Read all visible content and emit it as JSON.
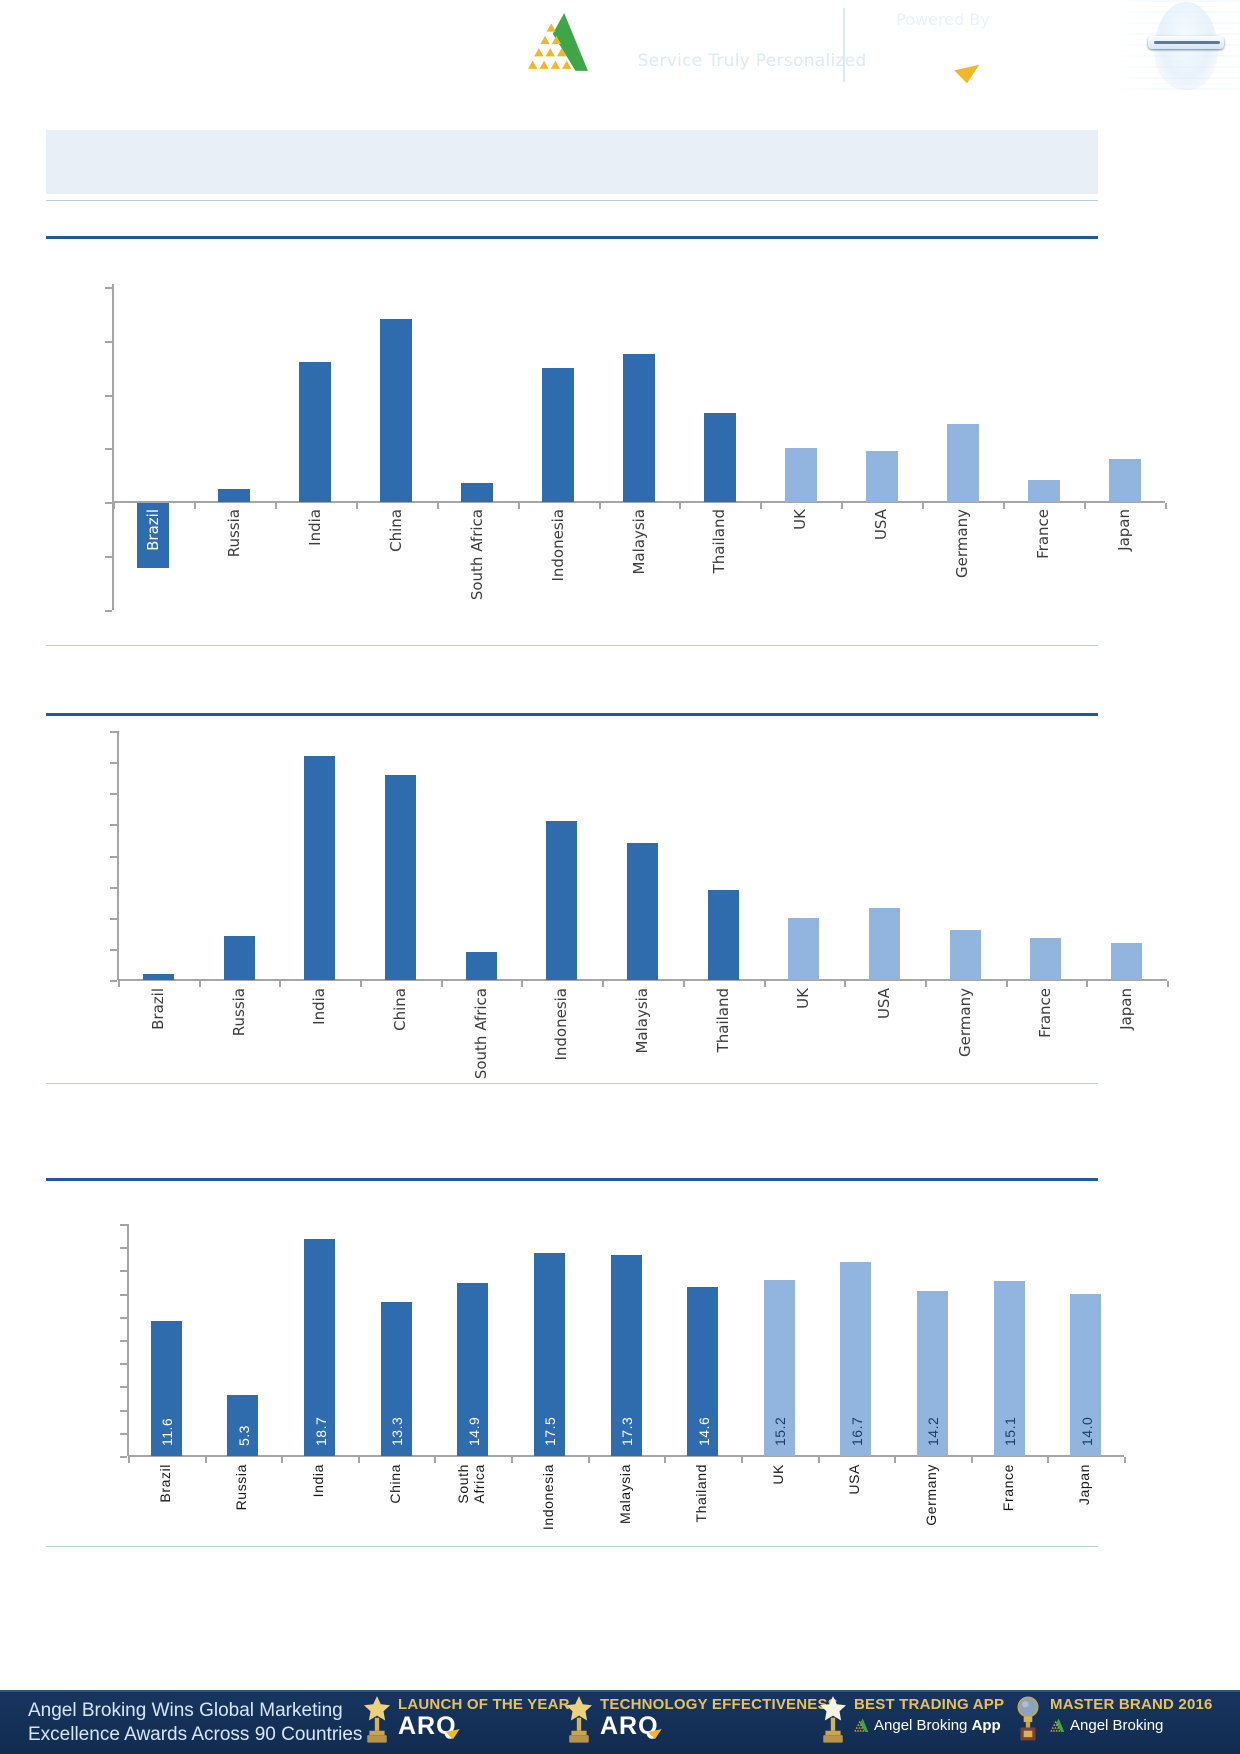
{
  "header": {
    "brand": "Angel Broking",
    "registered": "®",
    "tagline": "Service Truly Personalized",
    "powered_by": "Powered By",
    "arq": "ARQ",
    "arq_registered": "®"
  },
  "title_banner": {
    "text": ""
  },
  "chart_data": [
    {
      "type": "bar",
      "title": "",
      "y_axis": "unlabeled; values estimated in gridline units (1 unit = one gridline interval)",
      "ylim": [
        -2,
        4
      ],
      "gridline_step": 1,
      "grid": "off",
      "legend": "none",
      "categories": [
        "Brazil",
        "Russia",
        "India",
        "China",
        "South Africa",
        "Indonesia",
        "Malaysia",
        "Thailand",
        "UK",
        "USA",
        "Germany",
        "France",
        "Japan"
      ],
      "values": [
        -1.2,
        0.25,
        2.6,
        3.4,
        0.35,
        2.5,
        2.75,
        1.65,
        1.0,
        0.95,
        1.45,
        0.4,
        0.8
      ],
      "series_groups": [
        "emerging",
        "emerging",
        "emerging",
        "emerging",
        "emerging",
        "emerging",
        "emerging",
        "emerging",
        "developed",
        "developed",
        "developed",
        "developed",
        "developed"
      ],
      "colors": {
        "emerging": "#2E6CAE",
        "developed": "#92B5DF"
      }
    },
    {
      "type": "bar",
      "title": "",
      "y_axis": "unlabeled; values estimated in gridline units (1 unit = one gridline interval)",
      "ylim": [
        0,
        8
      ],
      "gridline_step": 1,
      "grid": "off",
      "legend": "none",
      "categories": [
        "Brazil",
        "Russia",
        "India",
        "China",
        "South Africa",
        "Indonesia",
        "Malaysia",
        "Thailand",
        "UK",
        "USA",
        "Germany",
        "France",
        "Japan"
      ],
      "values": [
        0.2,
        1.4,
        7.2,
        6.6,
        0.9,
        5.1,
        4.4,
        2.9,
        2.0,
        2.3,
        1.6,
        1.35,
        1.2
      ],
      "series_groups": [
        "emerging",
        "emerging",
        "emerging",
        "emerging",
        "emerging",
        "emerging",
        "emerging",
        "emerging",
        "developed",
        "developed",
        "developed",
        "developed",
        "developed"
      ],
      "colors": {
        "emerging": "#2E6CAE",
        "developed": "#92B5DF"
      }
    },
    {
      "type": "bar",
      "title": "",
      "y_axis": "unlabeled ticks; scale inferred from printed data labels",
      "ylim": [
        0,
        20
      ],
      "gridline_step": 2,
      "grid": "off",
      "legend": "none",
      "data_labels": true,
      "categories": [
        "Brazil",
        "Russia",
        "India",
        "China",
        "South\nAfrica",
        "Indonesia",
        "Malaysia",
        "Thailand",
        "UK",
        "USA",
        "Germany",
        "France",
        "Japan"
      ],
      "values": [
        11.6,
        5.3,
        18.7,
        13.3,
        14.9,
        17.5,
        17.3,
        14.6,
        15.2,
        16.7,
        14.2,
        15.1,
        14.0
      ],
      "value_labels": [
        "11.6",
        "5.3",
        "18.7",
        "13.3",
        "14.9",
        "17.5",
        "17.3",
        "14.6",
        "15.2",
        "16.7",
        "14.2",
        "15.1",
        "14.0"
      ],
      "series_groups": [
        "emerging",
        "emerging",
        "emerging",
        "emerging",
        "emerging",
        "emerging",
        "emerging",
        "emerging",
        "developed",
        "developed",
        "developed",
        "developed",
        "developed"
      ],
      "colors": {
        "emerging": "#2E6CAE",
        "developed": "#92B5DF"
      },
      "value_label_colors": {
        "emerging": "#ffffff",
        "developed": "#1f3a63"
      }
    }
  ],
  "footer": {
    "message_line1": "Angel Broking Wins Global Marketing",
    "message_line2": "Excellence Awards Across 90 Countries",
    "awards": [
      {
        "title": "LAUNCH OF THE YEAR",
        "sub": "ARQ",
        "icon": "gold-star-trophy"
      },
      {
        "title": "TECHNOLOGY EFFECTIVENESS",
        "sub": "ARQ",
        "icon": "gold-star-trophy"
      },
      {
        "title": "BEST TRADING APP",
        "sub": "Angel Broking ",
        "sub_bold": "App",
        "icon": "white-star-trophy"
      },
      {
        "title": "MASTER BRAND 2016",
        "sub": "Angel Broking",
        "icon": "globe-trophy"
      }
    ]
  }
}
